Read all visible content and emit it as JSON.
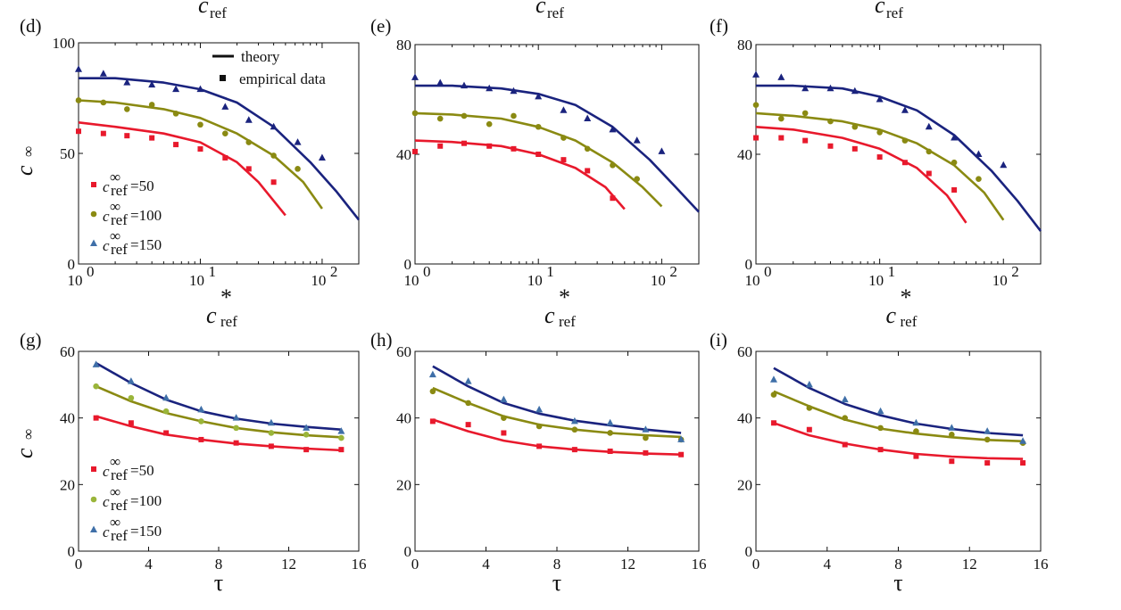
{
  "colors": {
    "series_50": "#e8192c",
    "series_100": "#8a8a12",
    "series_100_marker_g": "#9ab53a",
    "series_150": "#1a237e",
    "series_150_marker": "#3f6fa8",
    "axis": "#111111"
  },
  "figure": {
    "top_header": {
      "main": "c",
      "sub": "ref"
    },
    "legend_top": {
      "theory": "theory",
      "empirical": "empirical data"
    },
    "legend_bottom_labels": [
      "=50",
      "=100",
      "=150"
    ],
    "legend_c_main": "c",
    "legend_c_sup": "∞",
    "legend_c_sub": "ref",
    "y_axis_main": "c",
    "y_axis_sup": "∞",
    "x_axis_top": {
      "main": "c",
      "sup": "*",
      "sub": "ref"
    },
    "x_axis_bottom": "τ",
    "x_tick_base": "10",
    "x_tick_exps": [
      "0",
      "1",
      "2"
    ]
  },
  "chart_data": [
    {
      "panel": "(d)",
      "type": "line",
      "xscale": "log",
      "xlim": [
        1,
        200
      ],
      "ylim": [
        0,
        100
      ],
      "yticks": [
        0,
        50,
        100
      ],
      "series": [
        {
          "name": "c∞ref=50",
          "color_key": "series_50",
          "marker": "square",
          "theory": {
            "x": [
              1,
              2,
              5,
              10,
              20,
              30,
              50
            ],
            "y": [
              64,
              62,
              59,
              55,
              46,
              37,
              22
            ]
          },
          "empirical": {
            "x": [
              1,
              1.6,
              2.5,
              4,
              6.3,
              10,
              16,
              25,
              40
            ],
            "y": [
              60,
              59,
              58,
              57,
              54,
              52,
              48,
              43,
              37
            ]
          }
        },
        {
          "name": "c∞ref=100",
          "color_key": "series_100",
          "marker": "circle",
          "theory": {
            "x": [
              1,
              2,
              5,
              10,
              20,
              40,
              70,
              100
            ],
            "y": [
              74,
              73,
              70,
              66,
              59,
              49,
              37,
              25
            ]
          },
          "empirical": {
            "x": [
              1,
              1.6,
              2.5,
              4,
              6.3,
              10,
              16,
              25,
              40,
              63
            ],
            "y": [
              74,
              73,
              70,
              72,
              68,
              63,
              59,
              55,
              49,
              43
            ]
          }
        },
        {
          "name": "c∞ref=150",
          "color_key": "series_150",
          "marker": "triangle",
          "theory": {
            "x": [
              1,
              2,
              5,
              10,
              20,
              40,
              80,
              130,
              200
            ],
            "y": [
              84,
              84,
              82,
              79,
              73,
              62,
              46,
              33,
              20
            ]
          },
          "empirical": {
            "x": [
              1,
              1.6,
              2.5,
              4,
              6.3,
              10,
              16,
              25,
              40,
              63,
              100
            ],
            "y": [
              88,
              86,
              82,
              81,
              79,
              79,
              71,
              65,
              62,
              55,
              48
            ]
          }
        }
      ]
    },
    {
      "panel": "(e)",
      "type": "line",
      "xscale": "log",
      "xlim": [
        1,
        200
      ],
      "ylim": [
        0,
        80
      ],
      "yticks": [
        0,
        40,
        80
      ],
      "series": [
        {
          "name": "c∞ref=50",
          "color_key": "series_50",
          "marker": "square",
          "theory": {
            "x": [
              1,
              2,
              5,
              10,
              20,
              35,
              50
            ],
            "y": [
              45,
              44.5,
              43,
              40,
              35,
              28,
              20
            ]
          },
          "empirical": {
            "x": [
              1,
              1.6,
              2.5,
              4,
              6.3,
              10,
              16,
              25,
              40
            ],
            "y": [
              41,
              43,
              44,
              43,
              42,
              40,
              38,
              34,
              24
            ]
          }
        },
        {
          "name": "c∞ref=100",
          "color_key": "series_100",
          "marker": "circle",
          "theory": {
            "x": [
              1,
              2,
              5,
              10,
              20,
              40,
              70,
              100
            ],
            "y": [
              55,
              54.5,
              53,
              50,
              45,
              37,
              28,
              21
            ]
          },
          "empirical": {
            "x": [
              1,
              1.6,
              2.5,
              4,
              6.3,
              10,
              16,
              25,
              40,
              63
            ],
            "y": [
              55,
              53,
              54,
              51,
              54,
              50,
              46,
              42,
              36,
              31
            ]
          }
        },
        {
          "name": "c∞ref=150",
          "color_key": "series_150",
          "marker": "triangle",
          "theory": {
            "x": [
              1,
              2,
              5,
              10,
              20,
              40,
              80,
              130,
              200
            ],
            "y": [
              65,
              65,
              64,
              62,
              58,
              50,
              38,
              28,
              19
            ]
          },
          "empirical": {
            "x": [
              1,
              1.6,
              2.5,
              4,
              6.3,
              10,
              16,
              25,
              40,
              63,
              100
            ],
            "y": [
              68,
              66,
              65,
              64,
              63,
              61,
              56,
              53,
              49,
              45,
              41
            ]
          }
        }
      ]
    },
    {
      "panel": "(f)",
      "type": "line",
      "xscale": "log",
      "xlim": [
        1,
        200
      ],
      "ylim": [
        0,
        80
      ],
      "yticks": [
        0,
        40,
        80
      ],
      "series": [
        {
          "name": "c∞ref=50",
          "color_key": "series_50",
          "marker": "square",
          "theory": {
            "x": [
              1,
              2,
              5,
              10,
              20,
              35,
              50
            ],
            "y": [
              50,
              49,
              46,
              42,
              35,
              25,
              15
            ]
          },
          "empirical": {
            "x": [
              1,
              1.6,
              2.5,
              4,
              6.3,
              10,
              16,
              25,
              40
            ],
            "y": [
              46,
              46,
              45,
              43,
              42,
              39,
              37,
              33,
              27
            ]
          }
        },
        {
          "name": "c∞ref=100",
          "color_key": "series_100",
          "marker": "circle",
          "theory": {
            "x": [
              1,
              2,
              5,
              10,
              20,
              40,
              70,
              100
            ],
            "y": [
              55,
              54,
              52,
              49,
              44,
              36,
              26,
              16
            ]
          },
          "empirical": {
            "x": [
              1,
              1.6,
              2.5,
              4,
              6.3,
              10,
              16,
              25,
              40,
              63
            ],
            "y": [
              58,
              53,
              55,
              52,
              50,
              48,
              45,
              41,
              37,
              31
            ]
          }
        },
        {
          "name": "c∞ref=150",
          "color_key": "series_150",
          "marker": "triangle",
          "theory": {
            "x": [
              1,
              2,
              5,
              10,
              20,
              40,
              80,
              130,
              200
            ],
            "y": [
              65,
              65,
              64,
              61,
              56,
              47,
              34,
              23,
              12
            ]
          },
          "empirical": {
            "x": [
              1,
              1.6,
              2.5,
              4,
              6.3,
              10,
              16,
              25,
              40,
              63,
              100
            ],
            "y": [
              69,
              68,
              64,
              64,
              63,
              60,
              56,
              50,
              46,
              40,
              36
            ]
          }
        }
      ]
    },
    {
      "panel": "(g)",
      "type": "line",
      "xscale": "linear",
      "xlim": [
        0,
        16
      ],
      "ylim": [
        0,
        60
      ],
      "yticks": [
        0,
        20,
        40,
        60
      ],
      "xticks": [
        0,
        4,
        8,
        12,
        16
      ],
      "series": [
        {
          "name": "c∞ref=50",
          "color_key": "series_50",
          "marker": "square",
          "theory": {
            "x": [
              1,
              3,
              5,
              7,
              9,
              11,
              13,
              15
            ],
            "y": [
              40.5,
              37.5,
              35,
              33.5,
              32.3,
              31.5,
              30.8,
              30.3
            ]
          },
          "empirical": {
            "x": [
              1,
              3,
              5,
              7,
              9,
              11,
              13,
              15
            ],
            "y": [
              40,
              38.5,
              35.5,
              33.5,
              32.5,
              31.5,
              30.5,
              30.5
            ]
          }
        },
        {
          "name": "c∞ref=100",
          "color_key": "series_100_marker_g",
          "line_color_key": "series_100",
          "marker": "circle",
          "theory": {
            "x": [
              1,
              3,
              5,
              7,
              9,
              11,
              13,
              15
            ],
            "y": [
              49.5,
              45,
              41.5,
              39,
              37,
              35.7,
              34.8,
              34.2
            ]
          },
          "empirical": {
            "x": [
              1,
              3,
              5,
              7,
              9,
              11,
              13,
              15
            ],
            "y": [
              49.5,
              46,
              42,
              39,
              37,
              35.5,
              35,
              34
            ]
          }
        },
        {
          "name": "c∞ref=150",
          "color_key": "series_150_marker",
          "line_color_key": "series_150",
          "marker": "triangle",
          "theory": {
            "x": [
              1,
              3,
              5,
              7,
              9,
              11,
              13,
              15
            ],
            "y": [
              56.5,
              50.5,
              45.5,
              42,
              39.8,
              38.3,
              37.3,
              36.5
            ]
          },
          "empirical": {
            "x": [
              1,
              3,
              5,
              7,
              9,
              11,
              13,
              15
            ],
            "y": [
              56,
              51,
              46,
              42.5,
              40,
              38.5,
              37,
              36
            ]
          }
        }
      ]
    },
    {
      "panel": "(h)",
      "type": "line",
      "xscale": "linear",
      "xlim": [
        0,
        16
      ],
      "ylim": [
        0,
        60
      ],
      "yticks": [
        0,
        20,
        40,
        60
      ],
      "xticks": [
        0,
        4,
        8,
        12,
        16
      ],
      "series": [
        {
          "name": "c∞ref=50",
          "color_key": "series_50",
          "marker": "square",
          "theory": {
            "x": [
              1,
              3,
              5,
              7,
              9,
              11,
              13,
              15
            ],
            "y": [
              39.5,
              36,
              33.2,
              31.5,
              30.5,
              29.8,
              29.3,
              29
            ]
          },
          "empirical": {
            "x": [
              1,
              3,
              5,
              7,
              9,
              11,
              13,
              15
            ],
            "y": [
              39,
              38,
              35.5,
              31.5,
              30.5,
              30,
              29.5,
              29
            ]
          }
        },
        {
          "name": "c∞ref=100",
          "color_key": "series_100",
          "marker": "circle",
          "theory": {
            "x": [
              1,
              3,
              5,
              7,
              9,
              11,
              13,
              15
            ],
            "y": [
              49,
              44.5,
              40.5,
              38,
              36.5,
              35.5,
              34.8,
              34.3
            ]
          },
          "empirical": {
            "x": [
              1,
              3,
              5,
              7,
              9,
              11,
              13,
              15
            ],
            "y": [
              48,
              44.5,
              40,
              37.5,
              36.5,
              35.5,
              34,
              33.5
            ]
          }
        },
        {
          "name": "c∞ref=150",
          "color_key": "series_150_marker",
          "line_color_key": "series_150",
          "marker": "triangle",
          "theory": {
            "x": [
              1,
              3,
              5,
              7,
              9,
              11,
              13,
              15
            ],
            "y": [
              55.5,
              49.5,
              44.5,
              41.3,
              39.2,
              37.8,
              36.5,
              35.5
            ]
          },
          "empirical": {
            "x": [
              1,
              3,
              5,
              7,
              9,
              11,
              13,
              15
            ],
            "y": [
              53,
              51,
              45.5,
              42.5,
              39,
              38.5,
              36.5,
              33.5
            ]
          }
        }
      ]
    },
    {
      "panel": "(i)",
      "type": "line",
      "xscale": "linear",
      "xlim": [
        0,
        16
      ],
      "ylim": [
        0,
        60
      ],
      "yticks": [
        0,
        20,
        40,
        60
      ],
      "xticks": [
        0,
        4,
        8,
        12,
        16
      ],
      "series": [
        {
          "name": "c∞ref=50",
          "color_key": "series_50",
          "marker": "square",
          "theory": {
            "x": [
              1,
              3,
              5,
              7,
              9,
              11,
              13,
              15
            ],
            "y": [
              38.5,
              34.8,
              32.3,
              30.5,
              29.2,
              28.4,
              27.9,
              27.7
            ]
          },
          "empirical": {
            "x": [
              1,
              3,
              5,
              7,
              9,
              11,
              13,
              15
            ],
            "y": [
              38.5,
              36.5,
              32,
              30.5,
              28.5,
              27,
              26.5,
              26.5
            ]
          }
        },
        {
          "name": "c∞ref=100",
          "color_key": "series_100",
          "marker": "circle",
          "theory": {
            "x": [
              1,
              3,
              5,
              7,
              9,
              11,
              13,
              15
            ],
            "y": [
              48,
              43.5,
              39.5,
              36.8,
              35.3,
              34.2,
              33.4,
              33
            ]
          },
          "empirical": {
            "x": [
              1,
              3,
              5,
              7,
              9,
              11,
              13,
              15
            ],
            "y": [
              47,
              43,
              40,
              37,
              36,
              35,
              33.5,
              32.5
            ]
          }
        },
        {
          "name": "c∞ref=150",
          "color_key": "series_150_marker",
          "line_color_key": "series_150",
          "marker": "triangle",
          "theory": {
            "x": [
              1,
              3,
              5,
              7,
              9,
              11,
              13,
              15
            ],
            "y": [
              55,
              49,
              44.2,
              40.8,
              38.3,
              36.7,
              35.5,
              34.8
            ]
          },
          "empirical": {
            "x": [
              1,
              3,
              5,
              7,
              9,
              11,
              13,
              15
            ],
            "y": [
              51.5,
              50,
              45.5,
              42,
              38.5,
              37,
              36,
              33
            ]
          }
        }
      ]
    }
  ]
}
